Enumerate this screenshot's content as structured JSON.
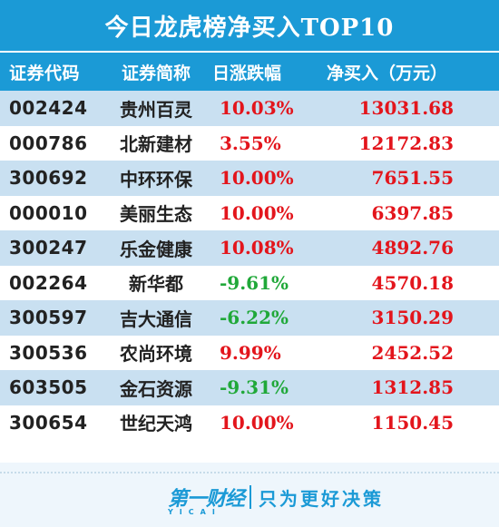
{
  "title": "今日龙虎榜净买入TOP10",
  "headers": {
    "code": "证券代码",
    "name": "证券简称",
    "change": "日涨跌幅",
    "net_buy": "净买入（万元）"
  },
  "rows": [
    {
      "code": "002424",
      "name": "贵州百灵",
      "change": "10.03%",
      "net_buy": "13031.68",
      "direction": "up"
    },
    {
      "code": "000786",
      "name": "北新建材",
      "change": "3.55%",
      "net_buy": "12172.83",
      "direction": "up"
    },
    {
      "code": "300692",
      "name": "中环环保",
      "change": "10.00%",
      "net_buy": "7651.55",
      "direction": "up"
    },
    {
      "code": "000010",
      "name": "美丽生态",
      "change": "10.00%",
      "net_buy": "6397.85",
      "direction": "up"
    },
    {
      "code": "300247",
      "name": "乐金健康",
      "change": "10.08%",
      "net_buy": "4892.76",
      "direction": "up"
    },
    {
      "code": "002264",
      "name": "新华都",
      "change": "-9.61%",
      "net_buy": "4570.18",
      "direction": "down"
    },
    {
      "code": "300597",
      "name": "吉大通信",
      "change": "-6.22%",
      "net_buy": "3150.29",
      "direction": "down"
    },
    {
      "code": "300536",
      "name": "农尚环境",
      "change": "9.99%",
      "net_buy": "2452.52",
      "direction": "up"
    },
    {
      "code": "603505",
      "name": "金石资源",
      "change": "-9.31%",
      "net_buy": "1312.85",
      "direction": "down"
    },
    {
      "code": "300654",
      "name": "世纪天鸿",
      "change": "10.00%",
      "net_buy": "1150.45",
      "direction": "up"
    }
  ],
  "footer": {
    "logo_text": "第一财经",
    "logo_sub": "YICAI",
    "slogan": "只为更好决策"
  },
  "colors": {
    "header_blue": "#1b9ad6",
    "row_shade": "#c9e0f1",
    "up_red": "#e3151c",
    "down_green": "#20a839"
  }
}
